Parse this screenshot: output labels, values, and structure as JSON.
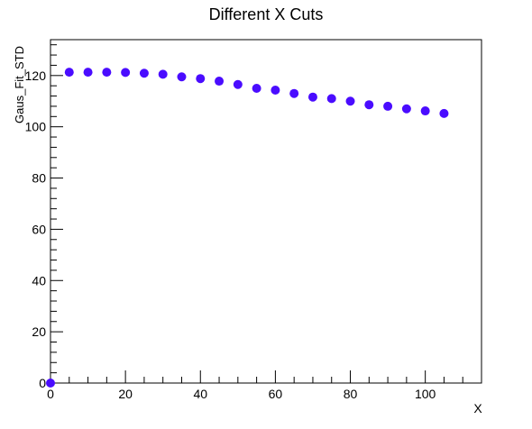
{
  "chart_data": {
    "type": "scatter",
    "title": "Different X Cuts",
    "xlabel": "X",
    "ylabel": "Gaus_Fit_STD",
    "xlim": [
      0,
      115
    ],
    "ylim": [
      0,
      134
    ],
    "x_ticks": [
      0,
      20,
      40,
      60,
      80,
      100
    ],
    "y_ticks": [
      0,
      20,
      40,
      60,
      80,
      100,
      120
    ],
    "marker_color": "#4a0cff",
    "grid": false,
    "legend": "none",
    "series": [
      {
        "x": [
          0,
          5,
          10,
          15,
          20,
          25,
          30,
          35,
          40,
          45,
          50,
          55,
          60,
          65,
          70,
          75,
          80,
          85,
          90,
          95,
          100,
          105
        ],
        "y": [
          0,
          121.3,
          121.3,
          121.3,
          121.2,
          120.9,
          120.5,
          119.5,
          118.8,
          117.8,
          116.5,
          115.0,
          114.3,
          113.0,
          111.6,
          111.0,
          110.0,
          108.6,
          108.0,
          107.0,
          106.2,
          105.2
        ]
      }
    ]
  }
}
